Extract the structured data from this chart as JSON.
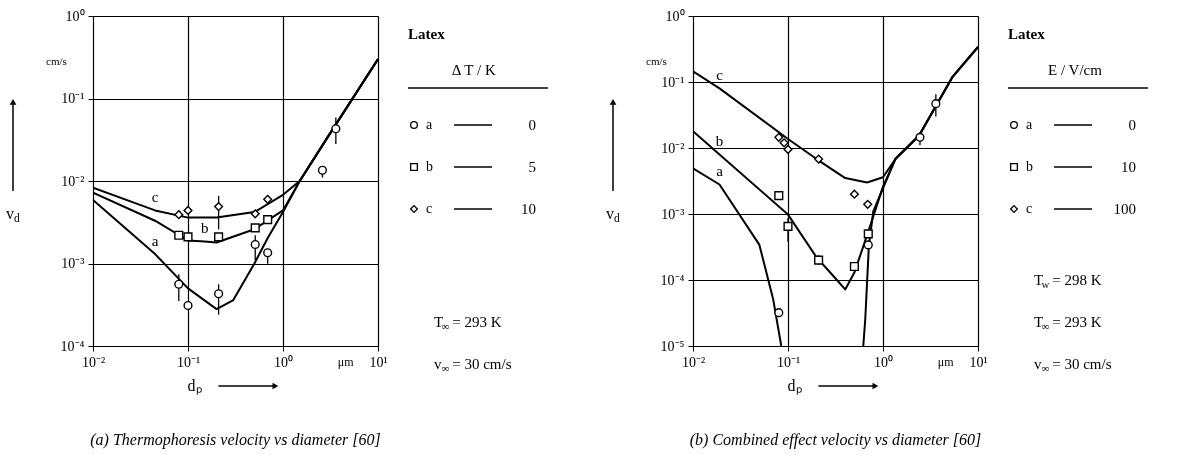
{
  "chart_data": [
    {
      "type": "line",
      "title": "(a) Thermophoresis velocity vs diameter [60]",
      "xlabel": "dₚ",
      "ylabel": "v$_{d}$",
      "legend_title": "Δ T / K",
      "log": "xy",
      "grid": true,
      "legend": "right",
      "xlim": [
        0.01,
        10
      ],
      "ylim": [
        0.0001,
        1
      ],
      "xticks": [
        {
          "value": 0.01,
          "label": "10⁻²"
        },
        {
          "value": 0.1,
          "label": "10⁻¹"
        },
        {
          "value": 1,
          "label": "10⁰"
        },
        {
          "value": 10,
          "label": "10¹"
        }
      ],
      "yticks": [
        {
          "value": 0.0001,
          "label": "10⁻⁴"
        },
        {
          "value": 0.001,
          "label": "10⁻³"
        },
        {
          "value": 0.01,
          "label": "10⁻²"
        },
        {
          "value": 0.1,
          "label": "10⁻¹"
        },
        {
          "value": 1,
          "label": "10⁰"
        }
      ],
      "annotations": [
        "Latex",
        "0",
        "5",
        "10",
        "cm/s",
        "μm",
        "T$_{∞}$ = 293 K",
        "v$_{∞}$ = 30 cm/s",
        {
          "text": "c",
          "x": 0.045,
          "y": 0.0044
        },
        {
          "text": "b",
          "x": 0.15,
          "y": 0.00185
        },
        {
          "text": "a",
          "x": 0.045,
          "y": 0.0013
        }
      ],
      "series": [
        {
          "type": "line",
          "name": "a",
          "color": "#000000",
          "x": [
            0.01,
            0.045,
            0.1,
            0.2,
            0.3,
            0.5,
            0.7,
            1,
            1.5,
            3,
            10
          ],
          "values": [
            0.0059,
            0.0013,
            0.0005,
            0.00028,
            0.00036,
            0.001,
            0.0021,
            0.0042,
            0.01,
            0.035,
            0.3
          ]
        },
        {
          "type": "line",
          "name": "b",
          "color": "#000000",
          "x": [
            0.01,
            0.045,
            0.1,
            0.15,
            0.2,
            0.5,
            1,
            1.5,
            3,
            10
          ],
          "values": [
            0.0072,
            0.0033,
            0.0019,
            0.00185,
            0.0018,
            0.0026,
            0.0044,
            0.01,
            0.035,
            0.3
          ]
        },
        {
          "type": "line",
          "name": "c",
          "color": "#000000",
          "x": [
            0.01,
            0.045,
            0.1,
            0.2,
            0.5,
            1,
            1.5,
            3,
            10
          ],
          "values": [
            0.0083,
            0.0044,
            0.0036,
            0.0036,
            0.0042,
            0.0068,
            0.01,
            0.035,
            0.3
          ]
        },
        {
          "type": "scatter",
          "marker": "circle",
          "color": "#000000",
          "x": [
            0.08,
            0.1,
            0.21,
            0.51,
            0.69,
            2.6,
            3.6
          ],
          "values": [
            0.00056,
            0.00031,
            0.00043,
            0.0017,
            0.00135,
            0.0135,
            0.043
          ],
          "errors": [
            [
              0.00035,
              0.00074
            ],
            null,
            [
              0.00024,
              0.00056
            ],
            [
              0.0011,
              0.0022
            ],
            [
              0.00099,
              0.0015
            ],
            [
              0.011,
              0.015
            ],
            [
              0.028,
              0.059
            ]
          ]
        },
        {
          "type": "scatter",
          "marker": "square",
          "color": "#000000",
          "x": [
            0.08,
            0.1,
            0.21,
            0.51,
            0.69
          ],
          "values": [
            0.0022,
            0.0021,
            0.0021,
            0.0027,
            0.0034
          ]
        },
        {
          "type": "scatter",
          "marker": "diamond",
          "color": "#000000",
          "x": [
            0.08,
            0.1,
            0.21,
            0.51,
            0.69
          ],
          "values": [
            0.0039,
            0.0044,
            0.0049,
            0.004,
            0.006
          ],
          "errors": [
            null,
            null,
            [
              0.0026,
              0.0066
            ],
            null,
            null
          ]
        }
      ]
    },
    {
      "type": "line",
      "title": "(b) Combined effect velocity vs diameter [60]",
      "xlabel": "dₚ",
      "ylabel": "v$_{d}$",
      "legend_title": "E / V/cm",
      "log": "xy",
      "grid": true,
      "legend": "right",
      "xlim": [
        0.01,
        10
      ],
      "ylim": [
        1e-05,
        1
      ],
      "xticks": [
        {
          "value": 0.01,
          "label": "10⁻²"
        },
        {
          "value": 0.1,
          "label": "10⁻¹"
        },
        {
          "value": 1,
          "label": "10⁰"
        },
        {
          "value": 10,
          "label": "10¹"
        }
      ],
      "yticks": [
        {
          "value": 1e-05,
          "label": "10⁻⁵"
        },
        {
          "value": 0.0001,
          "label": "10⁻⁴"
        },
        {
          "value": 0.001,
          "label": "10⁻³"
        },
        {
          "value": 0.01,
          "label": "10⁻²"
        },
        {
          "value": 0.1,
          "label": "10⁻¹"
        },
        {
          "value": 1,
          "label": "10⁰"
        }
      ],
      "annotations": [
        "Latex",
        "0",
        "10",
        "100",
        "cm/s",
        "μm",
        "T$_{w}$ = 298 K",
        "T$_{∞}$ = 293 K",
        "v$_{∞}$ = 30 cm/s",
        {
          "text": "c",
          "x": 0.019,
          "y": 0.08
        },
        {
          "text": "b",
          "x": 0.019,
          "y": 0.008
        },
        {
          "text": "a",
          "x": 0.019,
          "y": 0.0028
        }
      ],
      "series": [
        {
          "type": "line",
          "name": "a",
          "color": "#000000",
          "x": [
            0.01,
            0.019,
            0.05,
            0.07,
            0.085,
            0.3,
            0.62,
            0.65,
            0.71,
            0.79,
            0.98,
            1.35,
            2.4,
            5.4,
            10
          ],
          "values": [
            0.0049,
            0.0028,
            0.00034,
            5e-05,
            1e-05,
            null,
            1e-05,
            2.5e-05,
            0.00033,
            0.0011,
            0.0023,
            0.0068,
            0.0155,
            0.12,
            0.34
          ]
        },
        {
          "type": "line",
          "name": "b",
          "color": "#000000",
          "x": [
            0.01,
            0.019,
            0.1,
            0.2,
            0.3,
            0.4,
            0.5,
            0.7,
            1,
            1.35,
            2.4,
            5.4,
            10
          ],
          "values": [
            0.018,
            0.008,
            0.00098,
            0.00022,
            0.000115,
            7.2e-05,
            0.00013,
            0.00054,
            0.0026,
            0.0068,
            0.0155,
            0.12,
            0.34
          ]
        },
        {
          "type": "line",
          "name": "c",
          "color": "#000000",
          "x": [
            0.01,
            0.019,
            0.1,
            0.2,
            0.4,
            0.68,
            1,
            1.35,
            2.4,
            5.4,
            10
          ],
          "values": [
            0.145,
            0.08,
            0.0137,
            0.0068,
            0.0035,
            0.003,
            0.0036,
            0.0068,
            0.0155,
            0.12,
            0.34
          ]
        },
        {
          "type": "scatter",
          "marker": "circle",
          "color": "#000000",
          "x": [
            0.08,
            0.7,
            2.45,
            3.6
          ],
          "values": [
            3.2e-05,
            0.00034,
            0.0145,
            0.047
          ],
          "errors": [
            null,
            null,
            [
              0.011,
              0.017
            ],
            [
              0.03,
              0.065
            ]
          ]
        },
        {
          "type": "scatter",
          "marker": "square",
          "color": "#000000",
          "x": [
            0.08,
            0.1,
            0.21,
            0.5,
            0.7
          ],
          "values": [
            0.0019,
            0.00065,
            0.0002,
            0.00016,
            0.0005
          ],
          "errors": [
            null,
            [
              0.00038,
              0.00087
            ],
            [
              0.00017,
              0.00024
            ],
            null,
            null
          ]
        },
        {
          "type": "scatter",
          "marker": "diamond",
          "color": "#000000",
          "x": [
            0.08,
            0.091,
            0.1,
            0.21,
            0.5,
            0.69
          ],
          "values": [
            0.0145,
            0.012,
            0.0095,
            0.0068,
            0.002,
            0.0014
          ]
        }
      ]
    }
  ]
}
